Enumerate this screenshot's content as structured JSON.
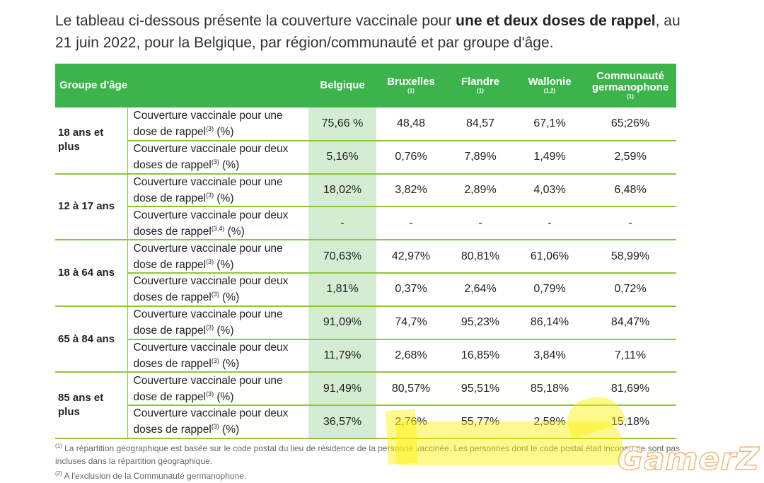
{
  "intro": {
    "text_before": "Le tableau ci-dessous présente la couverture vaccinale pour ",
    "text_bold": "une et deux doses de rappel",
    "text_after": ", au 21 juin 2022, pour la Belgique, par région/communauté et par groupe d'âge."
  },
  "table": {
    "headers": {
      "group": "Groupe d'âge",
      "belgique": "Belgique",
      "bruxelles": "Bruxelles",
      "bruxelles_note": "(1)",
      "flandre": "Flandre",
      "flandre_note": "(1)",
      "wallonie": "Wallonie",
      "wallonie_note": "(1,2)",
      "communaute": "Communauté germanophone",
      "communaute_note": "(1)"
    },
    "groups": [
      {
        "age": "18 ans et plus",
        "rows": [
          {
            "desc": "Couverture vaccinale pour une dose de rappel",
            "note": "(3)",
            "unit": " (%)",
            "values": [
              "75,66 %",
              "48,48",
              "84,57",
              "67,1%",
              "65;26%"
            ]
          },
          {
            "desc": "Couverture vaccinale pour deux doses de rappel",
            "note": "(3)",
            "unit": " (%)",
            "values": [
              "5,16%",
              "0,76%",
              "7,89%",
              "1,49%",
              "2,59%"
            ]
          }
        ]
      },
      {
        "age": "12 à 17 ans",
        "rows": [
          {
            "desc": "Couverture vaccinale pour une dose de rappel",
            "note": "(3)",
            "unit": " (%)",
            "values": [
              "18,02%",
              "3,82%",
              "2,89%",
              "4,03%",
              "6,48%"
            ]
          },
          {
            "desc": "Couverture vaccinale pour deux doses de rappel",
            "note": "(3,4)",
            "unit": " (%)",
            "values": [
              "-",
              "-",
              "-",
              "-",
              "-"
            ]
          }
        ]
      },
      {
        "age": "18 à 64 ans",
        "rows": [
          {
            "desc": "Couverture vaccinale pour une dose de rappel",
            "note": "(3)",
            "unit": " (%)",
            "values": [
              "70,63%",
              "42,97%",
              "80,81%",
              "61,06%",
              "58,99%"
            ]
          },
          {
            "desc": "Couverture vaccinale pour deux doses de rappel",
            "note": "(3)",
            "unit": " (%)",
            "values": [
              "1,81%",
              "0,37%",
              "2,64%",
              "0,79%",
              "0,72%"
            ]
          }
        ]
      },
      {
        "age": "65 à 84 ans",
        "rows": [
          {
            "desc": "Couverture vaccinale pour une dose de rappel",
            "note": "(3)",
            "unit": " (%)",
            "values": [
              "91,09%",
              "74,7%",
              "95,23%",
              "86,14%",
              "84,47%"
            ]
          },
          {
            "desc": "Couverture vaccinale pour deux doses de rappel",
            "note": "(3)",
            "unit": " (%)",
            "values": [
              "11,79%",
              "2,68%",
              "16,85%",
              "3,84%",
              "7,11%"
            ]
          }
        ]
      },
      {
        "age": "85 ans et plus",
        "rows": [
          {
            "desc": "Couverture vaccinale pour une dose de rappel",
            "note": "(3)",
            "unit": " (%)",
            "values": [
              "91,49%",
              "80,57%",
              "95,51%",
              "85,18%",
              "81,69%"
            ]
          },
          {
            "desc": "Couverture vaccinale pour deux doses de rappel",
            "note": "(3)",
            "unit": " (%)",
            "values": [
              "36,57%",
              "2,76%",
              "55,77%",
              "2,58%",
              "15,18%"
            ]
          }
        ]
      }
    ]
  },
  "footnotes": {
    "n1_mark": "(1)",
    "n1_text": "La répartition géographique est basée sur le code postal du lieu de résidence de la personne vaccinée. Les personnes dont le code postal était inconnu ne sont pas incluses dans la répartition géographique.",
    "n2_mark": "(2)",
    "n2_text": "A l'exclusion de la Communauté germanophone."
  },
  "watermark": "GamerZ",
  "colors": {
    "header_green": "#3cb44b",
    "belgique_column": "#d4edd2",
    "row_rule": "#8cc63f",
    "highlight": "#fff200"
  }
}
